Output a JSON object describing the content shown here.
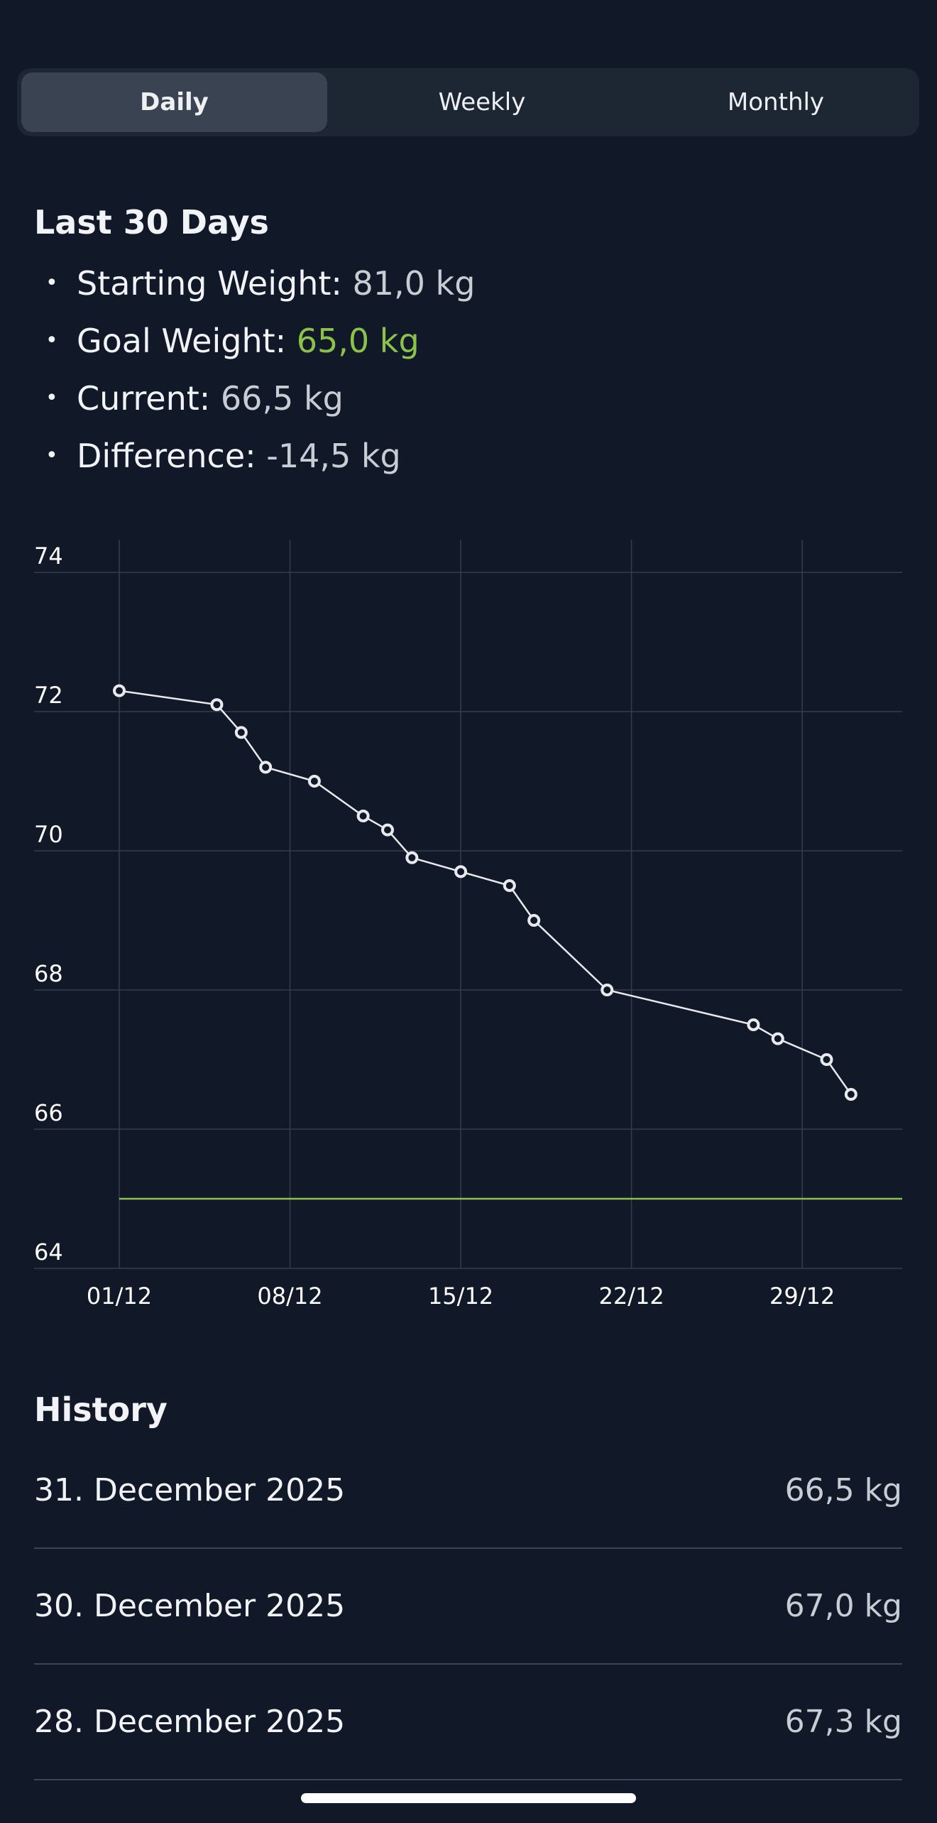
{
  "tabs": [
    {
      "label": "Daily",
      "active": true
    },
    {
      "label": "Weekly",
      "active": false
    },
    {
      "label": "Monthly",
      "active": false
    }
  ],
  "summary": {
    "title": "Last 30 Days",
    "items": [
      {
        "label": "Starting Weight:",
        "value": "81,0 kg"
      },
      {
        "label": "Goal Weight:",
        "value": "65,0 kg"
      },
      {
        "label": "Current:",
        "value": "66,5 kg"
      },
      {
        "label": "Difference:",
        "value": "-14,5 kg"
      }
    ]
  },
  "colors": {
    "background": "#111827",
    "goal": "#8bc34a",
    "muted_value": "#c8ccd3",
    "line": "#e8eaee"
  },
  "chart_data": {
    "type": "line",
    "ylim": [
      64,
      74
    ],
    "yticks": [
      "64",
      "66",
      "68",
      "70",
      "72",
      "74"
    ],
    "xticks": [
      {
        "label": "01/12",
        "day": 1
      },
      {
        "label": "08/12",
        "day": 8
      },
      {
        "label": "15/12",
        "day": 15
      },
      {
        "label": "22/12",
        "day": 22
      },
      {
        "label": "29/12",
        "day": 29
      }
    ],
    "xlim_days": [
      1,
      33.1
    ],
    "grid": true,
    "goal_line": 65.0,
    "series": [
      {
        "x": [
          "01/12",
          "05/12",
          "06/12",
          "07/12",
          "09/12",
          "11/12",
          "12/12",
          "13/12",
          "15/12",
          "17/12",
          "18/12",
          "21/12",
          "27/12",
          "28/12",
          "30/12",
          "31/12"
        ],
        "days": [
          1,
          5,
          6,
          7,
          9,
          11,
          12,
          13,
          15,
          17,
          18,
          21,
          27,
          28,
          30,
          31
        ],
        "values": [
          72.3,
          72.1,
          71.7,
          71.2,
          71.0,
          70.5,
          70.3,
          69.9,
          69.7,
          69.5,
          69.0,
          68.0,
          67.5,
          67.3,
          67.0,
          66.5
        ]
      }
    ]
  },
  "history": {
    "title": "History",
    "rows": [
      {
        "date": "31. December 2025",
        "weight": "66,5 kg"
      },
      {
        "date": "30. December 2025",
        "weight": "67,0 kg"
      },
      {
        "date": "28. December 2025",
        "weight": "67,3 kg"
      }
    ]
  }
}
